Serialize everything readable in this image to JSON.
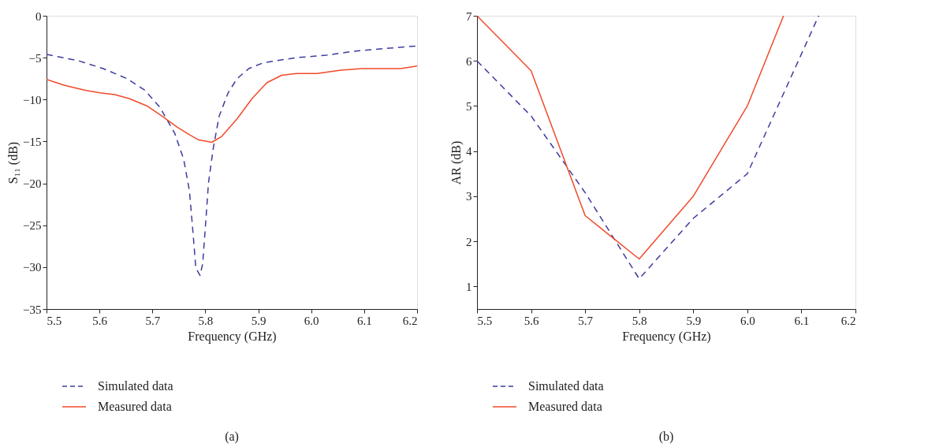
{
  "chart_data": [
    {
      "type": "line",
      "title": "(a)",
      "xlabel": "Frequency (GHz)",
      "ylabel": "S₁₁ (dB)",
      "xlim": [
        5.5,
        6.2
      ],
      "ylim": [
        -35,
        0
      ],
      "xticks": [
        5.5,
        5.6,
        5.7,
        5.8,
        5.9,
        {
          "value": 6.0,
          "label": "6.0"
        },
        6.1,
        6.2
      ],
      "yticks": [
        -35,
        -30,
        -25,
        -20,
        -15,
        -10,
        -5,
        0
      ],
      "grid": false,
      "legend": "bottom",
      "marker": "none",
      "series": [
        {
          "name": "Simulated data",
          "color": "#3c3ca0",
          "line_style": "dashed",
          "x": [
            5.5,
            5.562,
            5.607,
            5.652,
            5.686,
            5.714,
            5.742,
            5.759,
            5.77,
            5.777,
            5.782,
            5.79,
            5.795,
            5.801,
            5.806,
            5.815,
            5.826,
            5.843,
            5.86,
            5.882,
            5.91,
            5.972,
            6.029,
            6.085,
            6.141,
            6.2
          ],
          "values": [
            -4.6,
            -5.4,
            -6.3,
            -7.5,
            -8.9,
            -10.9,
            -14.0,
            -17.1,
            -20.9,
            -26.1,
            -30.1,
            -31.0,
            -29.6,
            -24.4,
            -19.9,
            -15.8,
            -12.0,
            -9.2,
            -7.5,
            -6.3,
            -5.6,
            -5.0,
            -4.7,
            -4.2,
            -3.9,
            -3.6
          ]
        },
        {
          "name": "Measured data",
          "color": "#f04a2a",
          "line_style": "solid",
          "x": [
            5.5,
            5.534,
            5.573,
            5.601,
            5.629,
            5.657,
            5.691,
            5.719,
            5.747,
            5.77,
            5.787,
            5.812,
            5.831,
            5.86,
            5.888,
            5.916,
            5.944,
            5.972,
            6.011,
            6.056,
            6.096,
            6.141,
            6.169,
            6.2
          ],
          "values": [
            -7.6,
            -8.3,
            -8.9,
            -9.2,
            -9.4,
            -9.9,
            -10.8,
            -12.0,
            -13.3,
            -14.2,
            -14.8,
            -15.1,
            -14.4,
            -12.3,
            -9.9,
            -8.0,
            -7.1,
            -6.9,
            -6.9,
            -6.5,
            -6.3,
            -6.3,
            -6.3,
            -6.0
          ]
        }
      ]
    },
    {
      "type": "line",
      "title": "(b)",
      "xlabel": "Frequency (GHz)",
      "ylabel": "AR (dB)",
      "xlim": [
        5.5,
        6.2
      ],
      "ylim": [
        0.5,
        7
      ],
      "xticks": [
        5.5,
        5.6,
        5.7,
        5.8,
        5.9,
        {
          "value": 6.0,
          "label": "6.0"
        },
        6.1,
        6.2
      ],
      "yticks": [
        1,
        2,
        3,
        4,
        5,
        6,
        7
      ],
      "grid": false,
      "legend": "bottom",
      "marker": "none",
      "series": [
        {
          "name": "Simulated data",
          "color": "#3c3ca0",
          "line_style": "dashed",
          "x": [
            5.5,
            5.6,
            5.7,
            5.8,
            5.9,
            6.0,
            6.132
          ],
          "values": [
            6.0,
            4.78,
            3.08,
            1.17,
            2.51,
            3.5,
            7.0
          ]
        },
        {
          "name": "Measured data",
          "color": "#f04a2a",
          "line_style": "solid",
          "x": [
            5.5,
            5.6,
            5.7,
            5.8,
            5.9,
            6.0,
            6.067
          ],
          "values": [
            7.0,
            5.78,
            2.57,
            1.61,
            3.0,
            5.0,
            7.0
          ]
        }
      ]
    }
  ]
}
